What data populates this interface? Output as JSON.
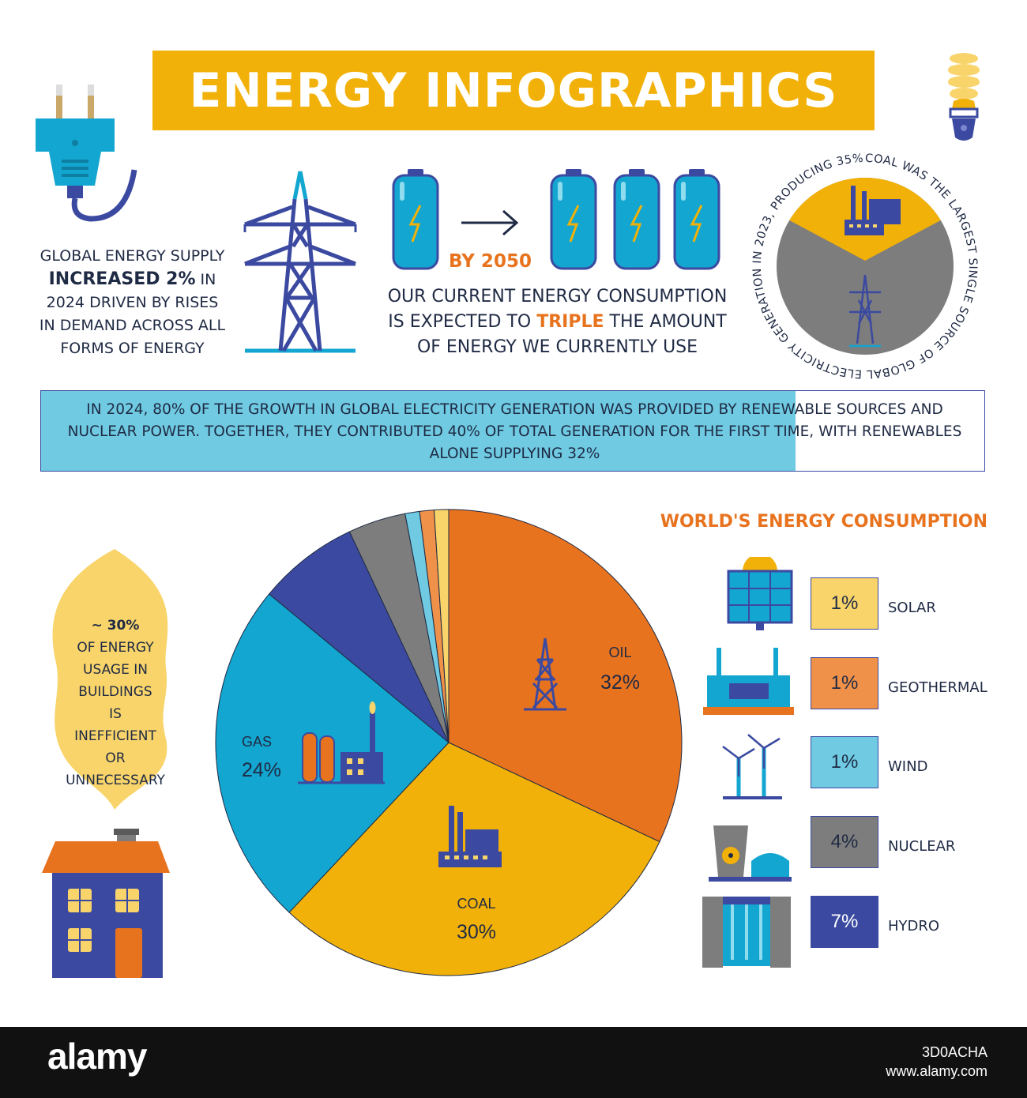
{
  "header": {
    "title": "ENERGY INFOGRAPHICS"
  },
  "supply": {
    "line1": "GLOBAL ENERGY SUPPLY",
    "highlight": "INCREASED 2%",
    "line2_rest": " IN",
    "line3": "2024 DRIVEN BY RISES",
    "line4": "IN DEMAND ACROSS ALL",
    "line5": "FORMS OF ENERGY"
  },
  "forecast": {
    "by_label": "BY 2050",
    "line1": "OUR CURRENT ENERGY CONSUMPTION",
    "line2_pre": "IS EXPECTED TO ",
    "line2_highlight": "TRIPLE",
    "line2_post": " THE AMOUNT",
    "line3": "OF ENERGY WE CURRENTLY USE"
  },
  "coal_circle": {
    "circular_text": "COAL WAS THE LARGEST SINGLE SOURCE OF GLOBAL ELECTRICITY GENERATION IN 2023, PRODUCING 35% "
  },
  "growth": {
    "text": "IN 2024, 80% OF THE GROWTH IN GLOBAL ELECTRICITY GENERATION WAS PROVIDED BY RENEWABLE SOURCES AND NUCLEAR POWER. TOGETHER, THEY CONTRIBUTED 40% OF TOTAL GENERATION FOR THE FIRST TIME, WITH RENEWABLES ALONE SUPPLYING 32%",
    "fill_fraction": 0.8
  },
  "buildings": {
    "value": "~ 30%",
    "lines": [
      "OF ENERGY",
      "USAGE IN",
      "BUILDINGS",
      "IS",
      "INEFFICIENT",
      "OR",
      "UNNECESSARY"
    ]
  },
  "chart_data": {
    "type": "pie",
    "title": "WORLD'S ENERGY CONSUMPTION",
    "series": [
      {
        "name": "OIL",
        "value": 32,
        "label": "32%",
        "color": "#e8731f"
      },
      {
        "name": "COAL",
        "value": 30,
        "label": "30%",
        "color": "#f2b108"
      },
      {
        "name": "GAS",
        "value": 24,
        "label": "24%",
        "color": "#13a6d0"
      },
      {
        "name": "HYDRO",
        "value": 7,
        "label": "7%",
        "color": "#3b4aa0"
      },
      {
        "name": "NUCLEAR",
        "value": 4,
        "label": "4%",
        "color": "#7d7d7d"
      },
      {
        "name": "WIND",
        "value": 1,
        "label": "1%",
        "color": "#6fcae2"
      },
      {
        "name": "GEOTHERMAL",
        "value": 1,
        "label": "1%",
        "color": "#ef9148"
      },
      {
        "name": "SOLAR",
        "value": 1,
        "label": "1%",
        "color": "#f8d46a"
      }
    ],
    "legend": [
      {
        "name": "SOLAR",
        "label": "1%",
        "color": "#f8d46a"
      },
      {
        "name": "GEOTHERMAL",
        "label": "1%",
        "color": "#ef9148"
      },
      {
        "name": "WIND",
        "label": "1%",
        "color": "#6fcae2"
      },
      {
        "name": "NUCLEAR",
        "label": "4%",
        "color": "#7d7d7d"
      },
      {
        "name": "HYDRO",
        "label": "7%",
        "color": "#3b4aa0"
      }
    ],
    "legend_placement": "right"
  },
  "footer": {
    "logo": "alamy",
    "image_id": "3D0ACHA",
    "url": "www.alamy.com"
  }
}
